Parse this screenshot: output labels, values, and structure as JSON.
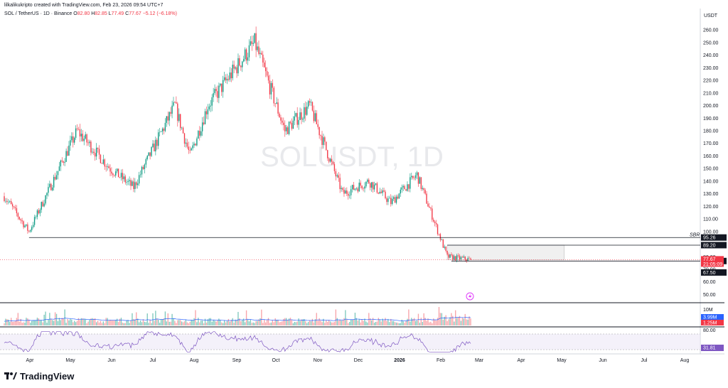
{
  "header": {
    "created_text": "lilkalikukripto created with TradingView.com, Feb 23, 2026 09:54 UTC+7"
  },
  "symbol": {
    "name": "SOL / TetherUS · 1D · Binance",
    "o_label": "O",
    "o": "82.80",
    "h_label": "H",
    "h": "82.85",
    "l_label": "L",
    "l": "77.49",
    "c_label": "C",
    "c": "77.67",
    "change": "−5.12 (−6.18%)"
  },
  "watermark": "SOLUSDT, 1D",
  "footer": {
    "brand": "TradingView",
    "logo_icon": "tradingview-logo-icon"
  },
  "colors": {
    "up": "#089981",
    "down": "#f23645",
    "volume_ma": "#2962ff",
    "rsi": "#7e57c2",
    "zone": "#e0e0e0",
    "line": "#131722"
  },
  "chart_data": {
    "type": "candlestick",
    "currency_label": "USDT",
    "price_axis": {
      "min": 48,
      "max": 268,
      "ticks": [
        50,
        60,
        70,
        80,
        90,
        100,
        110,
        120,
        130,
        140,
        150,
        160,
        170,
        180,
        190,
        200,
        210,
        220,
        230,
        240,
        250,
        260
      ]
    },
    "x_axis": {
      "labels": [
        "Apr",
        "May",
        "Jun",
        "Jul",
        "Aug",
        "Sep",
        "Oct",
        "Nov",
        "Dec",
        "2026",
        "Feb",
        "Mar",
        "Apr",
        "May",
        "Jun",
        "Jul",
        "Aug"
      ]
    },
    "price_path": [
      {
        "date": "2025-03-20",
        "price": 128
      },
      {
        "date": "2025-04-07",
        "price": 100
      },
      {
        "date": "2025-04-20",
        "price": 130
      },
      {
        "date": "2025-05-12",
        "price": 180
      },
      {
        "date": "2025-06-05",
        "price": 150
      },
      {
        "date": "2025-06-22",
        "price": 135
      },
      {
        "date": "2025-07-22",
        "price": 200
      },
      {
        "date": "2025-08-02",
        "price": 160
      },
      {
        "date": "2025-08-15",
        "price": 200
      },
      {
        "date": "2025-09-18",
        "price": 250
      },
      {
        "date": "2025-10-10",
        "price": 180
      },
      {
        "date": "2025-10-28",
        "price": 200
      },
      {
        "date": "2025-11-21",
        "price": 130
      },
      {
        "date": "2025-12-10",
        "price": 140
      },
      {
        "date": "2025-12-26",
        "price": 123
      },
      {
        "date": "2026-01-14",
        "price": 145
      },
      {
        "date": "2026-02-05",
        "price": 80
      },
      {
        "date": "2026-02-22",
        "price": 77.67
      }
    ],
    "horizontal_levels": [
      {
        "label": "SBR",
        "value": 95.26,
        "value_label": "95.26"
      },
      {
        "value": 89.2,
        "value_label": "89.20"
      },
      {
        "value": 76.6,
        "value_label": "76.60"
      },
      {
        "value": 67.5,
        "value_label": "67.50"
      }
    ],
    "zone": {
      "from": 89.2,
      "to": 77.67,
      "start": "2026-02-05",
      "end": "2026-05-01"
    },
    "last_price": {
      "value": 77.67,
      "label": "77.67",
      "countdown": "21:05:09"
    },
    "volume": {
      "axis_label": "10M",
      "volume_label": "3.99M",
      "ma_label": "1.25M"
    },
    "rsi": {
      "upper_label": "80.00",
      "value_label": "31.81",
      "levels": [
        70,
        30
      ]
    }
  }
}
